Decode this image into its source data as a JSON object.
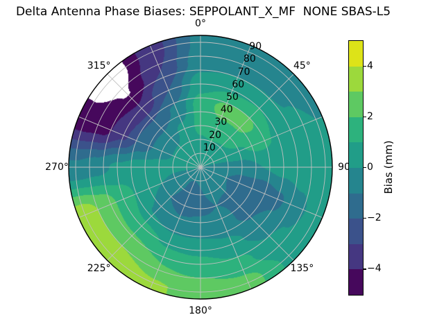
{
  "chart_data": {
    "type": "heatmap",
    "subtype": "polar_filled_contour",
    "title": "Delta Antenna Phase Biases: SEPPOLANT_X_MF  NONE SBAS-L5",
    "orientation": {
      "theta_zero": "top",
      "theta_direction": "clockwise"
    },
    "theta_ticks": [
      {
        "label": "0°",
        "angle_deg": 0
      },
      {
        "label": "45°",
        "angle_deg": 45
      },
      {
        "label": "90",
        "angle_deg": 90
      },
      {
        "label": "135°",
        "angle_deg": 135
      },
      {
        "label": "180°",
        "angle_deg": 180
      },
      {
        "label": "225°",
        "angle_deg": 225
      },
      {
        "label": "270°",
        "angle_deg": 270
      },
      {
        "label": "315°",
        "angle_deg": 315
      }
    ],
    "r_ticks": [
      {
        "label": "10",
        "zenith": 10
      },
      {
        "label": "20",
        "zenith": 20
      },
      {
        "label": "30",
        "zenith": 30
      },
      {
        "label": "40",
        "zenith": 40
      },
      {
        "label": "50",
        "zenith": 50
      },
      {
        "label": "60",
        "zenith": 60
      },
      {
        "label": "70",
        "zenith": 70
      },
      {
        "label": "80",
        "zenith": 80
      },
      {
        "label": "90",
        "zenith": 90
      }
    ],
    "r_max_zenith": 95,
    "colorbar": {
      "label": "Bias (mm)",
      "level_min": -5,
      "level_max": 5,
      "level_step": 1,
      "ticks": [
        {
          "label": "4",
          "value": 4
        },
        {
          "label": "2",
          "value": 2
        },
        {
          "label": "0",
          "value": 0
        },
        {
          "label": "−2",
          "value": -2
        },
        {
          "label": "−4",
          "value": -4
        }
      ],
      "band_colors": [
        "#46085c",
        "#453781",
        "#3b528b",
        "#2f6c8e",
        "#25858e",
        "#219d88",
        "#2db27d",
        "#5ec962",
        "#9cd93c",
        "#dde318"
      ],
      "below_min_blank": true
    },
    "grid": {
      "azimuth_deg": [
        0,
        22.5,
        45,
        67.5,
        90,
        112.5,
        135,
        157.5,
        180,
        202.5,
        225,
        247.5,
        270,
        292.5,
        315,
        337.5
      ],
      "zenith_deg": [
        0,
        15,
        30,
        45,
        60,
        75,
        90
      ],
      "bias_mm": [
        [
          0.2,
          0.6,
          1.3,
          1.5,
          0.6,
          -0.4,
          -0.7
        ],
        [
          0.2,
          0.7,
          1.7,
          2.3,
          0.9,
          -0.3,
          -0.6
        ],
        [
          0.1,
          0.5,
          1.6,
          2.4,
          1.0,
          -0.2,
          -0.6
        ],
        [
          0.0,
          0.3,
          0.9,
          1.3,
          0.9,
          0.3,
          0.0
        ],
        [
          -0.2,
          -0.4,
          -0.6,
          0.0,
          0.4,
          0.6,
          0.8
        ],
        [
          -0.3,
          -0.8,
          -1.4,
          -1.9,
          -1.2,
          -0.3,
          0.4
        ],
        [
          -0.3,
          -0.7,
          -1.1,
          -1.3,
          -0.6,
          0.2,
          0.8
        ],
        [
          -0.3,
          -0.8,
          -1.0,
          -0.6,
          0.3,
          1.3,
          2.4
        ],
        [
          -0.3,
          -1.0,
          -1.2,
          -0.5,
          0.8,
          1.8,
          2.7
        ],
        [
          -0.2,
          -1.2,
          -1.4,
          -0.6,
          0.9,
          2.0,
          3.1
        ],
        [
          -0.1,
          -0.9,
          -1.0,
          -0.1,
          1.3,
          2.7,
          3.8
        ],
        [
          0.0,
          -0.3,
          0.0,
          0.6,
          1.6,
          2.8,
          3.6
        ],
        [
          0.2,
          0.3,
          0.4,
          0.5,
          0.2,
          -0.4,
          -0.8
        ],
        [
          0.3,
          0.3,
          -0.4,
          -1.6,
          -3.2,
          -4.4,
          -4.6
        ],
        [
          0.3,
          0.4,
          -0.4,
          -1.8,
          -3.8,
          -5.05,
          -5.7
        ],
        [
          0.3,
          0.6,
          0.3,
          -0.8,
          -2.0,
          -3.0,
          -3.4
        ]
      ]
    }
  },
  "layout_colors": {
    "grid_line": "#c0c0c0",
    "outline": "#000000",
    "background": "#ffffff"
  }
}
